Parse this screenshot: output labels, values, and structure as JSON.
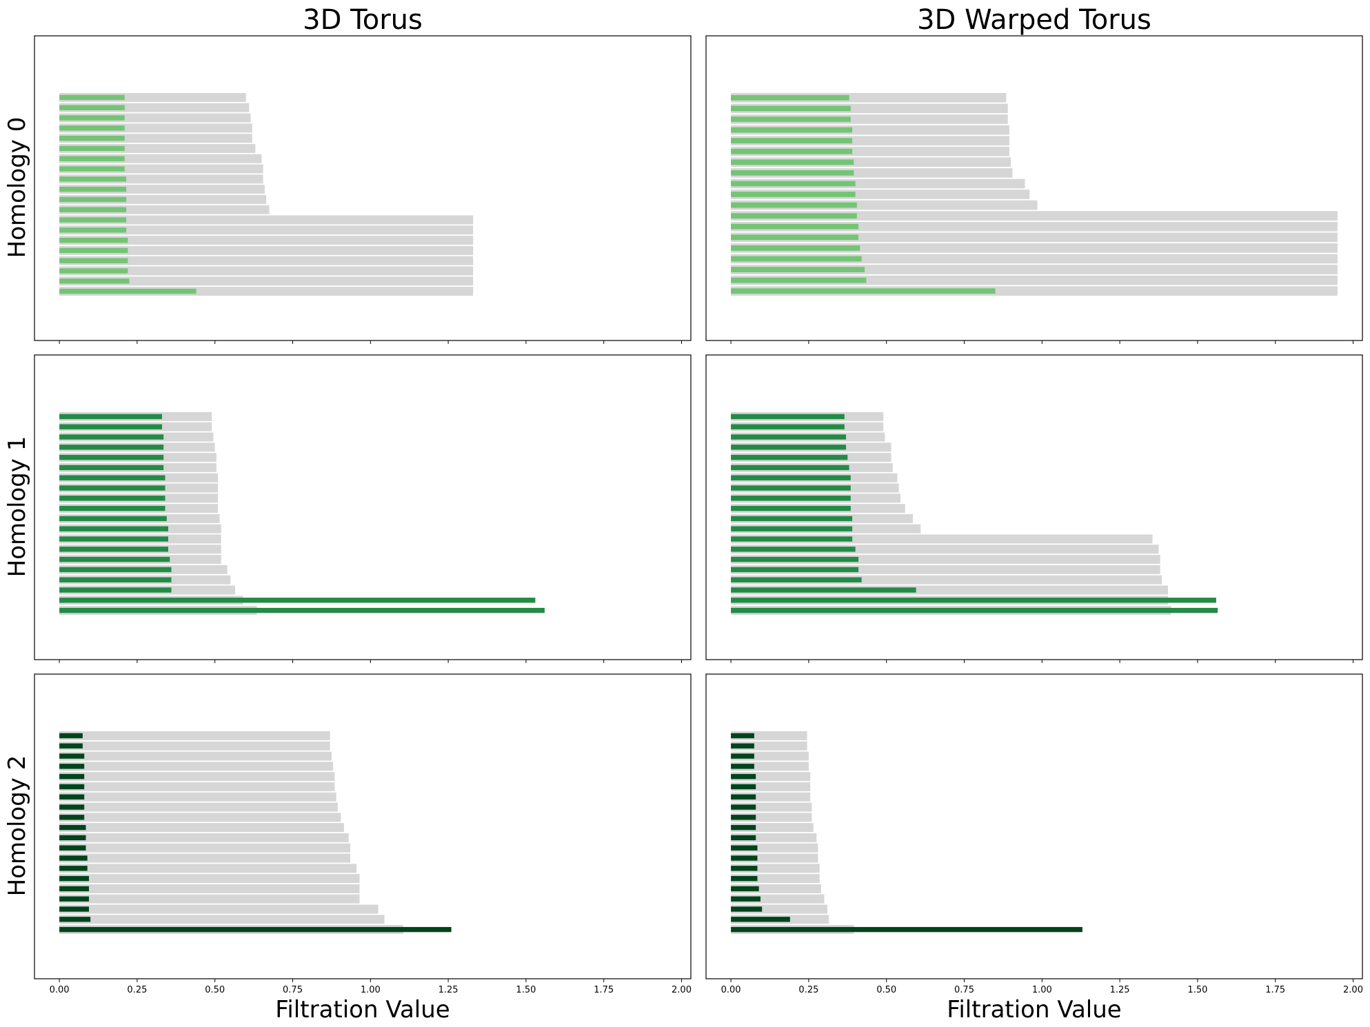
{
  "columns": [
    "3D Torus",
    "3D Warped Torus"
  ],
  "rows": [
    "Homology 0",
    "Homology 1",
    "Homology 2"
  ],
  "x_axis_label": "Filtration Value",
  "x_ticks": [
    "0.00",
    "0.25",
    "0.50",
    "0.75",
    "1.00",
    "1.25",
    "1.50",
    "1.75",
    "2.00"
  ],
  "colors": {
    "background_bar": "#d6d6d6",
    "homology_0": "#74c476",
    "homology_1": "#238b45",
    "homology_2": "#00441b"
  },
  "chart_data": [
    {
      "type": "bar",
      "orientation": "horizontal",
      "column": "3D Torus",
      "row": "Homology 0",
      "xlim": [
        -0.08,
        2.03
      ],
      "bars": [
        {
          "death": 0.6,
          "birth": 0.21
        },
        {
          "death": 0.61,
          "birth": 0.21
        },
        {
          "death": 0.615,
          "birth": 0.21
        },
        {
          "death": 0.62,
          "birth": 0.21
        },
        {
          "death": 0.62,
          "birth": 0.21
        },
        {
          "death": 0.63,
          "birth": 0.21
        },
        {
          "death": 0.65,
          "birth": 0.21
        },
        {
          "death": 0.655,
          "birth": 0.21
        },
        {
          "death": 0.655,
          "birth": 0.215
        },
        {
          "death": 0.66,
          "birth": 0.215
        },
        {
          "death": 0.665,
          "birth": 0.215
        },
        {
          "death": 0.675,
          "birth": 0.215
        },
        {
          "death": 1.33,
          "birth": 0.215
        },
        {
          "death": 1.33,
          "birth": 0.215
        },
        {
          "death": 1.33,
          "birth": 0.22
        },
        {
          "death": 1.33,
          "birth": 0.22
        },
        {
          "death": 1.33,
          "birth": 0.22
        },
        {
          "death": 1.33,
          "birth": 0.22
        },
        {
          "death": 1.33,
          "birth": 0.225
        },
        {
          "death": 1.33,
          "birth": 0.44
        }
      ]
    },
    {
      "type": "bar",
      "orientation": "horizontal",
      "column": "3D Warped Torus",
      "row": "Homology 0",
      "xlim": [
        -0.08,
        2.03
      ],
      "bars": [
        {
          "death": 0.885,
          "birth": 0.38
        },
        {
          "death": 0.89,
          "birth": 0.385
        },
        {
          "death": 0.89,
          "birth": 0.385
        },
        {
          "death": 0.895,
          "birth": 0.39
        },
        {
          "death": 0.895,
          "birth": 0.39
        },
        {
          "death": 0.895,
          "birth": 0.39
        },
        {
          "death": 0.9,
          "birth": 0.395
        },
        {
          "death": 0.905,
          "birth": 0.395
        },
        {
          "death": 0.945,
          "birth": 0.4
        },
        {
          "death": 0.96,
          "birth": 0.4
        },
        {
          "death": 0.985,
          "birth": 0.405
        },
        {
          "death": 1.95,
          "birth": 0.405
        },
        {
          "death": 1.95,
          "birth": 0.41
        },
        {
          "death": 1.95,
          "birth": 0.41
        },
        {
          "death": 1.95,
          "birth": 0.415
        },
        {
          "death": 1.95,
          "birth": 0.42
        },
        {
          "death": 1.95,
          "birth": 0.43
        },
        {
          "death": 1.95,
          "birth": 0.435
        },
        {
          "death": 1.95,
          "birth": 0.85
        }
      ]
    },
    {
      "type": "bar",
      "orientation": "horizontal",
      "column": "3D Torus",
      "row": "Homology 1",
      "xlim": [
        -0.08,
        2.03
      ],
      "bars": [
        {
          "death": 0.49,
          "birth": 0.33
        },
        {
          "death": 0.49,
          "birth": 0.33
        },
        {
          "death": 0.495,
          "birth": 0.335
        },
        {
          "death": 0.5,
          "birth": 0.335
        },
        {
          "death": 0.505,
          "birth": 0.335
        },
        {
          "death": 0.505,
          "birth": 0.335
        },
        {
          "death": 0.51,
          "birth": 0.34
        },
        {
          "death": 0.51,
          "birth": 0.34
        },
        {
          "death": 0.51,
          "birth": 0.34
        },
        {
          "death": 0.51,
          "birth": 0.34
        },
        {
          "death": 0.515,
          "birth": 0.345
        },
        {
          "death": 0.52,
          "birth": 0.35
        },
        {
          "death": 0.52,
          "birth": 0.35
        },
        {
          "death": 0.52,
          "birth": 0.35
        },
        {
          "death": 0.52,
          "birth": 0.355
        },
        {
          "death": 0.54,
          "birth": 0.36
        },
        {
          "death": 0.55,
          "birth": 0.36
        },
        {
          "death": 0.565,
          "birth": 0.36
        },
        {
          "death": 0.59,
          "birth": 1.53
        },
        {
          "death": 0.635,
          "birth": 1.56
        }
      ]
    },
    {
      "type": "bar",
      "orientation": "horizontal",
      "column": "3D Warped Torus",
      "row": "Homology 1",
      "xlim": [
        -0.08,
        2.03
      ],
      "bars": [
        {
          "death": 0.49,
          "birth": 0.365
        },
        {
          "death": 0.49,
          "birth": 0.365
        },
        {
          "death": 0.495,
          "birth": 0.37
        },
        {
          "death": 0.515,
          "birth": 0.37
        },
        {
          "death": 0.515,
          "birth": 0.375
        },
        {
          "death": 0.52,
          "birth": 0.38
        },
        {
          "death": 0.535,
          "birth": 0.385
        },
        {
          "death": 0.54,
          "birth": 0.385
        },
        {
          "death": 0.545,
          "birth": 0.385
        },
        {
          "death": 0.56,
          "birth": 0.385
        },
        {
          "death": 0.585,
          "birth": 0.39
        },
        {
          "death": 0.61,
          "birth": 0.39
        },
        {
          "death": 1.355,
          "birth": 0.39
        },
        {
          "death": 1.375,
          "birth": 0.4
        },
        {
          "death": 1.38,
          "birth": 0.41
        },
        {
          "death": 1.38,
          "birth": 0.41
        },
        {
          "death": 1.385,
          "birth": 0.42
        },
        {
          "death": 1.405,
          "birth": 0.595
        },
        {
          "death": 1.405,
          "birth": 1.56
        },
        {
          "death": 1.415,
          "birth": 1.565
        }
      ]
    },
    {
      "type": "bar",
      "orientation": "horizontal",
      "column": "3D Torus",
      "row": "Homology 2",
      "xlim": [
        -0.08,
        2.03
      ],
      "bars": [
        {
          "death": 0.87,
          "birth": 0.075
        },
        {
          "death": 0.87,
          "birth": 0.075
        },
        {
          "death": 0.875,
          "birth": 0.08
        },
        {
          "death": 0.88,
          "birth": 0.08
        },
        {
          "death": 0.885,
          "birth": 0.08
        },
        {
          "death": 0.885,
          "birth": 0.08
        },
        {
          "death": 0.89,
          "birth": 0.08
        },
        {
          "death": 0.895,
          "birth": 0.08
        },
        {
          "death": 0.905,
          "birth": 0.08
        },
        {
          "death": 0.915,
          "birth": 0.085
        },
        {
          "death": 0.93,
          "birth": 0.085
        },
        {
          "death": 0.935,
          "birth": 0.085
        },
        {
          "death": 0.935,
          "birth": 0.09
        },
        {
          "death": 0.955,
          "birth": 0.09
        },
        {
          "death": 0.965,
          "birth": 0.095
        },
        {
          "death": 0.965,
          "birth": 0.095
        },
        {
          "death": 0.965,
          "birth": 0.095
        },
        {
          "death": 1.025,
          "birth": 0.095
        },
        {
          "death": 1.045,
          "birth": 0.1
        },
        {
          "death": 1.105,
          "birth": 1.26
        }
      ]
    },
    {
      "type": "bar",
      "orientation": "horizontal",
      "column": "3D Warped Torus",
      "row": "Homology 2",
      "xlim": [
        -0.08,
        2.03
      ],
      "bars": [
        {
          "death": 0.245,
          "birth": 0.075
        },
        {
          "death": 0.245,
          "birth": 0.075
        },
        {
          "death": 0.25,
          "birth": 0.075
        },
        {
          "death": 0.25,
          "birth": 0.075
        },
        {
          "death": 0.255,
          "birth": 0.08
        },
        {
          "death": 0.255,
          "birth": 0.08
        },
        {
          "death": 0.255,
          "birth": 0.08
        },
        {
          "death": 0.26,
          "birth": 0.08
        },
        {
          "death": 0.26,
          "birth": 0.08
        },
        {
          "death": 0.265,
          "birth": 0.08
        },
        {
          "death": 0.275,
          "birth": 0.08
        },
        {
          "death": 0.28,
          "birth": 0.085
        },
        {
          "death": 0.28,
          "birth": 0.085
        },
        {
          "death": 0.285,
          "birth": 0.085
        },
        {
          "death": 0.285,
          "birth": 0.085
        },
        {
          "death": 0.29,
          "birth": 0.09
        },
        {
          "death": 0.3,
          "birth": 0.095
        },
        {
          "death": 0.31,
          "birth": 0.1
        },
        {
          "death": 0.315,
          "birth": 0.19
        },
        {
          "death": 0.395,
          "birth": 1.13
        }
      ]
    }
  ]
}
